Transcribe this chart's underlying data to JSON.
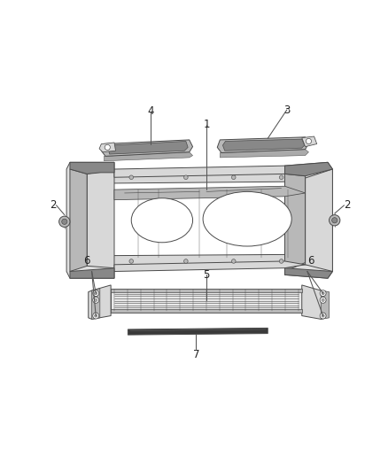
{
  "background_color": "#ffffff",
  "fig_width": 4.38,
  "fig_height": 5.33,
  "dpi": 100,
  "line_color": "#4a4a4a",
  "fill_light": "#d8d8d8",
  "fill_mid": "#b8b8b8",
  "fill_dark": "#888888",
  "fill_very_dark": "#555555",
  "annotation_color": "#555555",
  "label_fontsize": 8.5,
  "line_width": 0.7
}
